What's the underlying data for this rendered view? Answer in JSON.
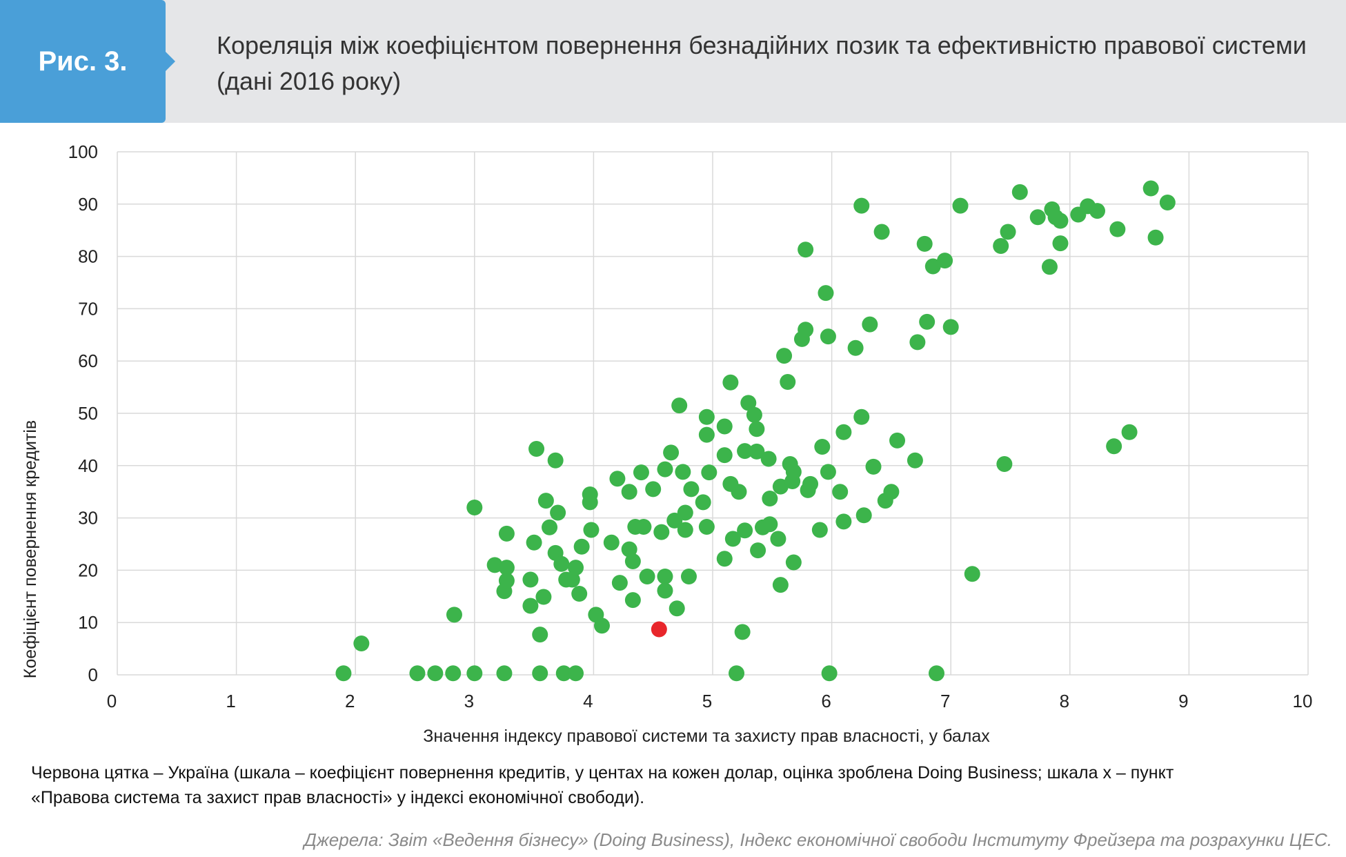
{
  "header": {
    "figure_label": "Рис. 3.",
    "title": "Кореляція між коефіцієнтом повернення безнадійних позик та ефективністю правової системи (дані 2016 року)"
  },
  "colors": {
    "header_bg": "#e5e6e8",
    "badge_bg": "#4a9fd8",
    "point": "#3cb44b",
    "highlight": "#e8262b",
    "grid": "#d9d9d9"
  },
  "chart_data": {
    "type": "scatter",
    "xlabel": "Значення індексу правової системи та захисту прав власності, у балах",
    "ylabel": "Коефіцієнт повернення кредитів",
    "xlim": [
      0,
      10
    ],
    "ylim": [
      0,
      100
    ],
    "x_ticks": [
      "0",
      "1",
      "2",
      "3",
      "4",
      "5",
      "6",
      "7",
      "8",
      "9",
      "10"
    ],
    "y_ticks": [
      "0",
      "10",
      "20",
      "30",
      "40",
      "50",
      "60",
      "70",
      "80",
      "90",
      "100"
    ],
    "grid": true,
    "highlight_point": {
      "x": 4.55,
      "y": 8.7
    },
    "points": [
      [
        1.9,
        0.3
      ],
      [
        2.05,
        6
      ],
      [
        2.52,
        0.3
      ],
      [
        2.67,
        0.3
      ],
      [
        2.82,
        0.3
      ],
      [
        3.0,
        0.3
      ],
      [
        3.25,
        0.3
      ],
      [
        3.55,
        0.3
      ],
      [
        3.75,
        0.3
      ],
      [
        3.85,
        0.3
      ],
      [
        2.83,
        11.5
      ],
      [
        3.0,
        32
      ],
      [
        3.17,
        21
      ],
      [
        3.25,
        16
      ],
      [
        3.27,
        18
      ],
      [
        3.27,
        20.5
      ],
      [
        3.27,
        27
      ],
      [
        3.47,
        13.2
      ],
      [
        3.47,
        18.2
      ],
      [
        3.5,
        25.3
      ],
      [
        3.52,
        43.2
      ],
      [
        3.55,
        7.7
      ],
      [
        3.58,
        14.9
      ],
      [
        3.6,
        33.3
      ],
      [
        3.63,
        28.2
      ],
      [
        3.68,
        41
      ],
      [
        3.68,
        23.3
      ],
      [
        3.7,
        31
      ],
      [
        3.73,
        21.2
      ],
      [
        3.77,
        18.2
      ],
      [
        3.82,
        18.2
      ],
      [
        3.85,
        20.5
      ],
      [
        3.88,
        15.5
      ],
      [
        3.9,
        24.5
      ],
      [
        3.97,
        33
      ],
      [
        3.97,
        34.5
      ],
      [
        3.98,
        27.7
      ],
      [
        4.02,
        11.5
      ],
      [
        4.07,
        9.4
      ],
      [
        4.15,
        25.3
      ],
      [
        4.2,
        37.5
      ],
      [
        4.22,
        17.6
      ],
      [
        4.3,
        35
      ],
      [
        4.3,
        24
      ],
      [
        4.33,
        21.7
      ],
      [
        4.33,
        14.3
      ],
      [
        4.35,
        28.3
      ],
      [
        4.4,
        38.7
      ],
      [
        4.42,
        28.3
      ],
      [
        4.45,
        18.8
      ],
      [
        4.5,
        35.5
      ],
      [
        4.57,
        27.3
      ],
      [
        4.6,
        39.3
      ],
      [
        4.6,
        18.8
      ],
      [
        4.6,
        16.1
      ],
      [
        4.65,
        42.5
      ],
      [
        4.68,
        29.5
      ],
      [
        4.7,
        12.7
      ],
      [
        4.72,
        51.5
      ],
      [
        4.75,
        38.8
      ],
      [
        4.77,
        31
      ],
      [
        4.77,
        27.7
      ],
      [
        4.8,
        18.8
      ],
      [
        4.82,
        35.5
      ],
      [
        4.92,
        33
      ],
      [
        4.95,
        28.3
      ],
      [
        4.95,
        49.3
      ],
      [
        4.95,
        45.9
      ],
      [
        4.97,
        38.7
      ],
      [
        5.1,
        47.5
      ],
      [
        5.1,
        42
      ],
      [
        5.1,
        22.2
      ],
      [
        5.15,
        55.9
      ],
      [
        5.15,
        36.5
      ],
      [
        5.17,
        26
      ],
      [
        5.2,
        0.3
      ],
      [
        5.22,
        35
      ],
      [
        5.25,
        8.2
      ],
      [
        5.27,
        27.6
      ],
      [
        5.27,
        42.8
      ],
      [
        5.3,
        52
      ],
      [
        5.35,
        49.7
      ],
      [
        5.37,
        47
      ],
      [
        5.37,
        42.7
      ],
      [
        5.38,
        23.8
      ],
      [
        5.42,
        28.2
      ],
      [
        5.47,
        41.3
      ],
      [
        5.48,
        33.7
      ],
      [
        5.48,
        28.8
      ],
      [
        5.55,
        26
      ],
      [
        5.57,
        17.2
      ],
      [
        5.57,
        36
      ],
      [
        5.6,
        61
      ],
      [
        5.63,
        56
      ],
      [
        5.65,
        40.3
      ],
      [
        5.67,
        37
      ],
      [
        5.68,
        38.8
      ],
      [
        5.68,
        21.5
      ],
      [
        5.75,
        64.2
      ],
      [
        5.78,
        81.3
      ],
      [
        5.78,
        66
      ],
      [
        5.8,
        35.3
      ],
      [
        5.82,
        36.5
      ],
      [
        5.9,
        27.7
      ],
      [
        5.92,
        43.6
      ],
      [
        5.95,
        73
      ],
      [
        5.97,
        64.7
      ],
      [
        5.97,
        38.8
      ],
      [
        5.98,
        0.3
      ],
      [
        6.07,
        35
      ],
      [
        6.1,
        46.4
      ],
      [
        6.1,
        29.3
      ],
      [
        6.2,
        62.5
      ],
      [
        6.25,
        89.7
      ],
      [
        6.25,
        49.3
      ],
      [
        6.27,
        30.5
      ],
      [
        6.32,
        67
      ],
      [
        6.35,
        39.8
      ],
      [
        6.42,
        84.7
      ],
      [
        6.45,
        33.3
      ],
      [
        6.5,
        35
      ],
      [
        6.55,
        44.8
      ],
      [
        6.7,
        41
      ],
      [
        6.72,
        63.6
      ],
      [
        6.78,
        82.4
      ],
      [
        6.8,
        67.5
      ],
      [
        6.85,
        78.1
      ],
      [
        6.88,
        0.3
      ],
      [
        6.95,
        79.2
      ],
      [
        7.0,
        66.5
      ],
      [
        7.08,
        89.7
      ],
      [
        7.18,
        19.3
      ],
      [
        7.42,
        82
      ],
      [
        7.45,
        40.3
      ],
      [
        7.48,
        84.7
      ],
      [
        7.58,
        92.3
      ],
      [
        7.73,
        87.5
      ],
      [
        7.83,
        78
      ],
      [
        7.85,
        89
      ],
      [
        7.88,
        87.5
      ],
      [
        7.92,
        86.8
      ],
      [
        7.92,
        82.5
      ],
      [
        8.07,
        88
      ],
      [
        8.15,
        89.6
      ],
      [
        8.23,
        88.7
      ],
      [
        8.37,
        43.7
      ],
      [
        8.4,
        85.2
      ],
      [
        8.5,
        46.4
      ],
      [
        8.68,
        93
      ],
      [
        8.72,
        83.6
      ],
      [
        8.82,
        90.3
      ]
    ]
  },
  "footer": {
    "note_line1": "Червона цятка  – Україна (шкала – коефіцієнт повернення кредитів, у центах на кожен долар, оцінка зроблена Doing Business; шкала х – пункт",
    "note_line2": "«Правова система та захист прав власності» у індексі економічної свободи).",
    "source": "Джерела: Звіт «Ведення бізнесу» (Doing Business), Індекс економічної свободи Інституту Фрейзера та розрахунки ЦЕС."
  }
}
